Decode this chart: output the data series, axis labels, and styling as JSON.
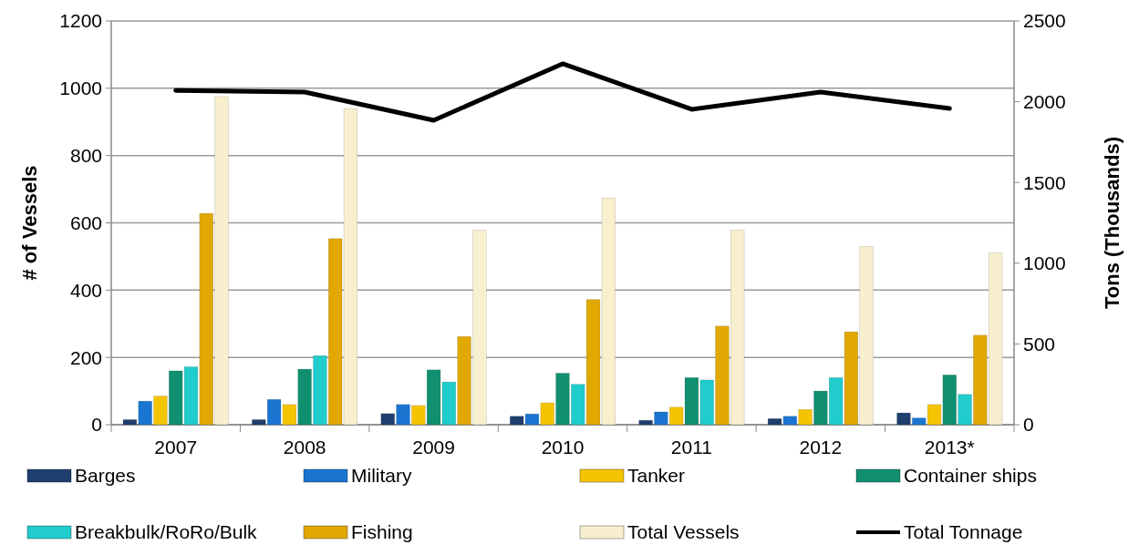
{
  "chart_data": {
    "type": "bar",
    "ylabel": "# of Vessels",
    "y2label": "Tons (Thousands)",
    "categories": [
      "2007",
      "2008",
      "2009",
      "2010",
      "2011",
      "2012",
      "2013*"
    ],
    "series": [
      {
        "name": "Barges",
        "color": "#1f3f6e",
        "values": [
          15,
          15,
          33,
          25,
          13,
          18,
          35
        ]
      },
      {
        "name": "Military",
        "color": "#1a75d1",
        "values": [
          70,
          75,
          60,
          32,
          38,
          25,
          20
        ]
      },
      {
        "name": "Tanker",
        "color": "#f5c400",
        "values": [
          85,
          60,
          57,
          65,
          52,
          45,
          60
        ]
      },
      {
        "name": "Container ships",
        "color": "#109070",
        "values": [
          160,
          165,
          163,
          153,
          140,
          100,
          148
        ]
      },
      {
        "name": "Breakbulk/RoRo/Bulk",
        "color": "#20cccc",
        "values": [
          172,
          205,
          127,
          120,
          133,
          140,
          90
        ]
      },
      {
        "name": "Fishing",
        "color": "#e0a800",
        "values": [
          628,
          553,
          262,
          372,
          293,
          276,
          266
        ]
      },
      {
        "name": "Total Vessels",
        "color": "#f8efcf",
        "values": [
          975,
          940,
          578,
          674,
          578,
          530,
          510
        ]
      },
      {
        "name": "Total Tonnage",
        "type": "line",
        "axis": "y2",
        "color": "#000000",
        "values": [
          2070,
          2060,
          1885,
          2235,
          1953,
          2060,
          1958
        ]
      }
    ],
    "ylim": [
      0,
      1200
    ],
    "yticks": [
      0,
      200,
      400,
      600,
      800,
      1000,
      1200
    ],
    "y2lim": [
      0,
      2500
    ],
    "y2ticks": [
      0,
      500,
      1000,
      1500,
      2000,
      2500
    ],
    "grid": "y",
    "legend": "bottom",
    "marker": "none",
    "line_style": "solid"
  }
}
